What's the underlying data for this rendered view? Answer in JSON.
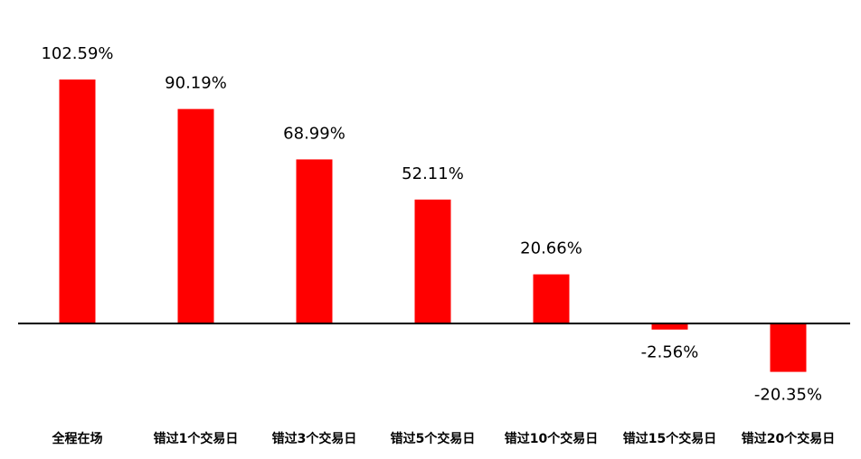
{
  "chart_data": {
    "type": "bar",
    "categories": [
      "全程在场",
      "错过1个交易日",
      "错过3个交易日",
      "错过5个交易日",
      "错过10个交易日",
      "错过15个交易日",
      "错过20个交易日"
    ],
    "values": [
      102.59,
      90.19,
      68.99,
      52.11,
      20.66,
      -2.56,
      -20.35
    ],
    "value_labels": [
      "102.59%",
      "90.19%",
      "68.99%",
      "52.11%",
      "20.66%",
      "-2.56%",
      "-20.35%"
    ],
    "color": "#ff0000",
    "ylim": [
      -40,
      120
    ]
  }
}
